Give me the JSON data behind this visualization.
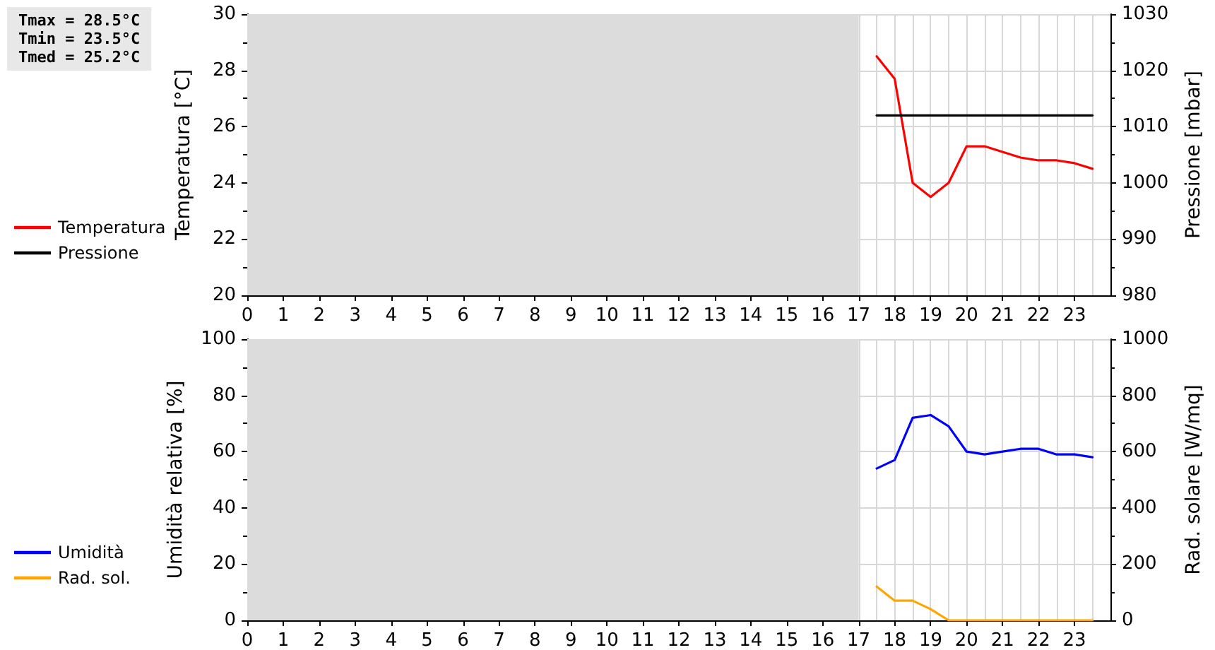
{
  "chart_data": [
    {
      "type": "line",
      "ylabel": "Temperatura [°C]",
      "y2label": "Pressione [mbar]",
      "annotations": [
        "Tmax = 28.5°C",
        "Tmin = 23.5°C",
        "Tmed = 25.2°C"
      ],
      "x": [
        17.5,
        18,
        18.5,
        19,
        19.5,
        20,
        20.5,
        21,
        21.5,
        22,
        22.5,
        23,
        23.5
      ],
      "series": [
        {
          "name": "Temperatura",
          "color": "#ff0000",
          "values": [
            28.5,
            27.7,
            24.0,
            23.5,
            24.0,
            25.3,
            25.3,
            25.1,
            24.9,
            24.8,
            24.8,
            24.7,
            24.5
          ]
        },
        {
          "name": "Pressione",
          "color": "#000000",
          "axis": "y2",
          "values": [
            1012,
            1012,
            1012,
            1012,
            1012,
            1012,
            1012,
            1012,
            1012,
            1012,
            1012,
            1012,
            1012
          ]
        }
      ],
      "xlim": [
        0,
        24
      ],
      "xticks": [
        0,
        1,
        2,
        3,
        4,
        5,
        6,
        7,
        8,
        9,
        10,
        11,
        12,
        13,
        14,
        15,
        16,
        17,
        18,
        19,
        20,
        21,
        22,
        23
      ],
      "ylim": [
        20,
        30
      ],
      "yticks": [
        20,
        22,
        24,
        26,
        28,
        30
      ],
      "y2lim": [
        980,
        1030
      ],
      "y2ticks": [
        980,
        990,
        1000,
        1010,
        1020,
        1030
      ],
      "bands": [
        {
          "axis": "x",
          "from": 0,
          "to": 17,
          "color": "#dcdcdc"
        }
      ],
      "grid": true,
      "legend": "left",
      "marker": "none",
      "line_style": "solid"
    },
    {
      "type": "line",
      "ylabel": "Umidità relativa [%]",
      "y2label": "Rad. solare [W/mq]",
      "x": [
        17.5,
        18,
        18.5,
        19,
        19.5,
        20,
        20.5,
        21,
        21.5,
        22,
        22.5,
        23,
        23.5
      ],
      "series": [
        {
          "name": "Umidità",
          "color": "#0000ff",
          "values": [
            54,
            57,
            72,
            73,
            69,
            60,
            59,
            60,
            61,
            61,
            59,
            59,
            58
          ]
        },
        {
          "name": "Rad. sol.",
          "color": "#ffa500",
          "axis": "y2",
          "values": [
            120,
            70,
            70,
            40,
            0,
            0,
            0,
            0,
            0,
            0,
            0,
            0,
            0
          ]
        }
      ],
      "xlim": [
        0,
        24
      ],
      "xticks": [
        0,
        1,
        2,
        3,
        4,
        5,
        6,
        7,
        8,
        9,
        10,
        11,
        12,
        13,
        14,
        15,
        16,
        17,
        18,
        19,
        20,
        21,
        22,
        23
      ],
      "ylim": [
        0,
        100
      ],
      "yticks": [
        0,
        20,
        40,
        60,
        80,
        100
      ],
      "y2lim": [
        0,
        1000
      ],
      "y2ticks": [
        0,
        200,
        400,
        600,
        800,
        1000
      ],
      "bands": [
        {
          "axis": "x",
          "from": 0,
          "to": 17,
          "color": "#dcdcdc"
        }
      ],
      "grid": true,
      "legend": "left",
      "marker": "none",
      "line_style": "solid"
    }
  ]
}
